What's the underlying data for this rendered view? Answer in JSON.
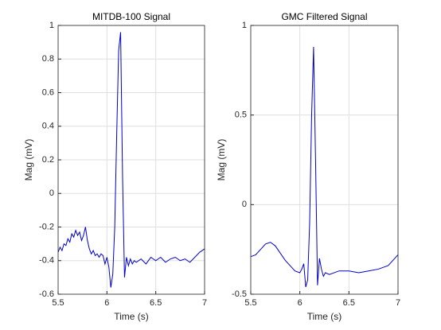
{
  "chart_data": [
    {
      "type": "line",
      "title": "MITDB-100 Signal",
      "xlabel": "Time (s)",
      "ylabel": "Mag (mV)",
      "x": [
        5.5,
        5.52,
        5.54,
        5.56,
        5.58,
        5.6,
        5.62,
        5.64,
        5.66,
        5.68,
        5.7,
        5.72,
        5.74,
        5.76,
        5.78,
        5.8,
        5.82,
        5.84,
        5.86,
        5.88,
        5.9,
        5.92,
        5.94,
        5.96,
        5.98,
        6.0,
        6.02,
        6.04,
        6.06,
        6.08,
        6.1,
        6.12,
        6.14,
        6.16,
        6.18,
        6.2,
        6.22,
        6.24,
        6.26,
        6.28,
        6.3,
        6.35,
        6.4,
        6.45,
        6.5,
        6.55,
        6.6,
        6.65,
        6.7,
        6.75,
        6.8,
        6.85,
        6.9,
        6.95,
        7
      ],
      "values": [
        -0.35,
        -0.32,
        -0.34,
        -0.3,
        -0.31,
        -0.27,
        -0.29,
        -0.24,
        -0.26,
        -0.22,
        -0.25,
        -0.23,
        -0.28,
        -0.25,
        -0.2,
        -0.28,
        -0.33,
        -0.36,
        -0.34,
        -0.37,
        -0.36,
        -0.38,
        -0.36,
        -0.37,
        -0.42,
        -0.38,
        -0.44,
        -0.56,
        -0.48,
        -0.2,
        0.35,
        0.85,
        0.96,
        0.1,
        -0.5,
        -0.38,
        -0.43,
        -0.39,
        -0.42,
        -0.4,
        -0.41,
        -0.39,
        -0.42,
        -0.38,
        -0.4,
        -0.38,
        -0.41,
        -0.39,
        -0.38,
        -0.4,
        -0.39,
        -0.41,
        -0.38,
        -0.35,
        -0.33
      ],
      "color": "#0000cc",
      "xlim": [
        5.5,
        7
      ],
      "ylim": [
        -0.6,
        1
      ],
      "xticks": [
        5.5,
        6,
        6.5,
        7
      ],
      "yticks": [
        -0.6,
        -0.4,
        -0.2,
        0,
        0.2,
        0.4,
        0.6,
        0.8,
        1
      ],
      "grid": true
    },
    {
      "type": "line",
      "title": "GMC Filtered Signal",
      "xlabel": "Time (s)",
      "ylabel": "Mag (mV)",
      "x": [
        5.5,
        5.55,
        5.6,
        5.65,
        5.7,
        5.75,
        5.8,
        5.85,
        5.9,
        5.95,
        6.0,
        6.02,
        6.04,
        6.06,
        6.08,
        6.1,
        6.12,
        6.14,
        6.16,
        6.18,
        6.2,
        6.22,
        6.24,
        6.26,
        6.3,
        6.4,
        6.5,
        6.6,
        6.7,
        6.8,
        6.9,
        7
      ],
      "values": [
        -0.29,
        -0.28,
        -0.25,
        -0.22,
        -0.21,
        -0.23,
        -0.27,
        -0.31,
        -0.34,
        -0.37,
        -0.38,
        -0.36,
        -0.33,
        -0.46,
        -0.42,
        -0.1,
        0.5,
        0.88,
        0.25,
        -0.45,
        -0.3,
        -0.36,
        -0.4,
        -0.38,
        -0.39,
        -0.37,
        -0.37,
        -0.38,
        -0.37,
        -0.36,
        -0.34,
        -0.28
      ],
      "color": "#0000cc",
      "xlim": [
        5.5,
        7
      ],
      "ylim": [
        -0.5,
        1
      ],
      "xticks": [
        5.5,
        6,
        6.5,
        7
      ],
      "yticks": [
        -0.5,
        0,
        0.5,
        1
      ],
      "grid": true
    }
  ]
}
